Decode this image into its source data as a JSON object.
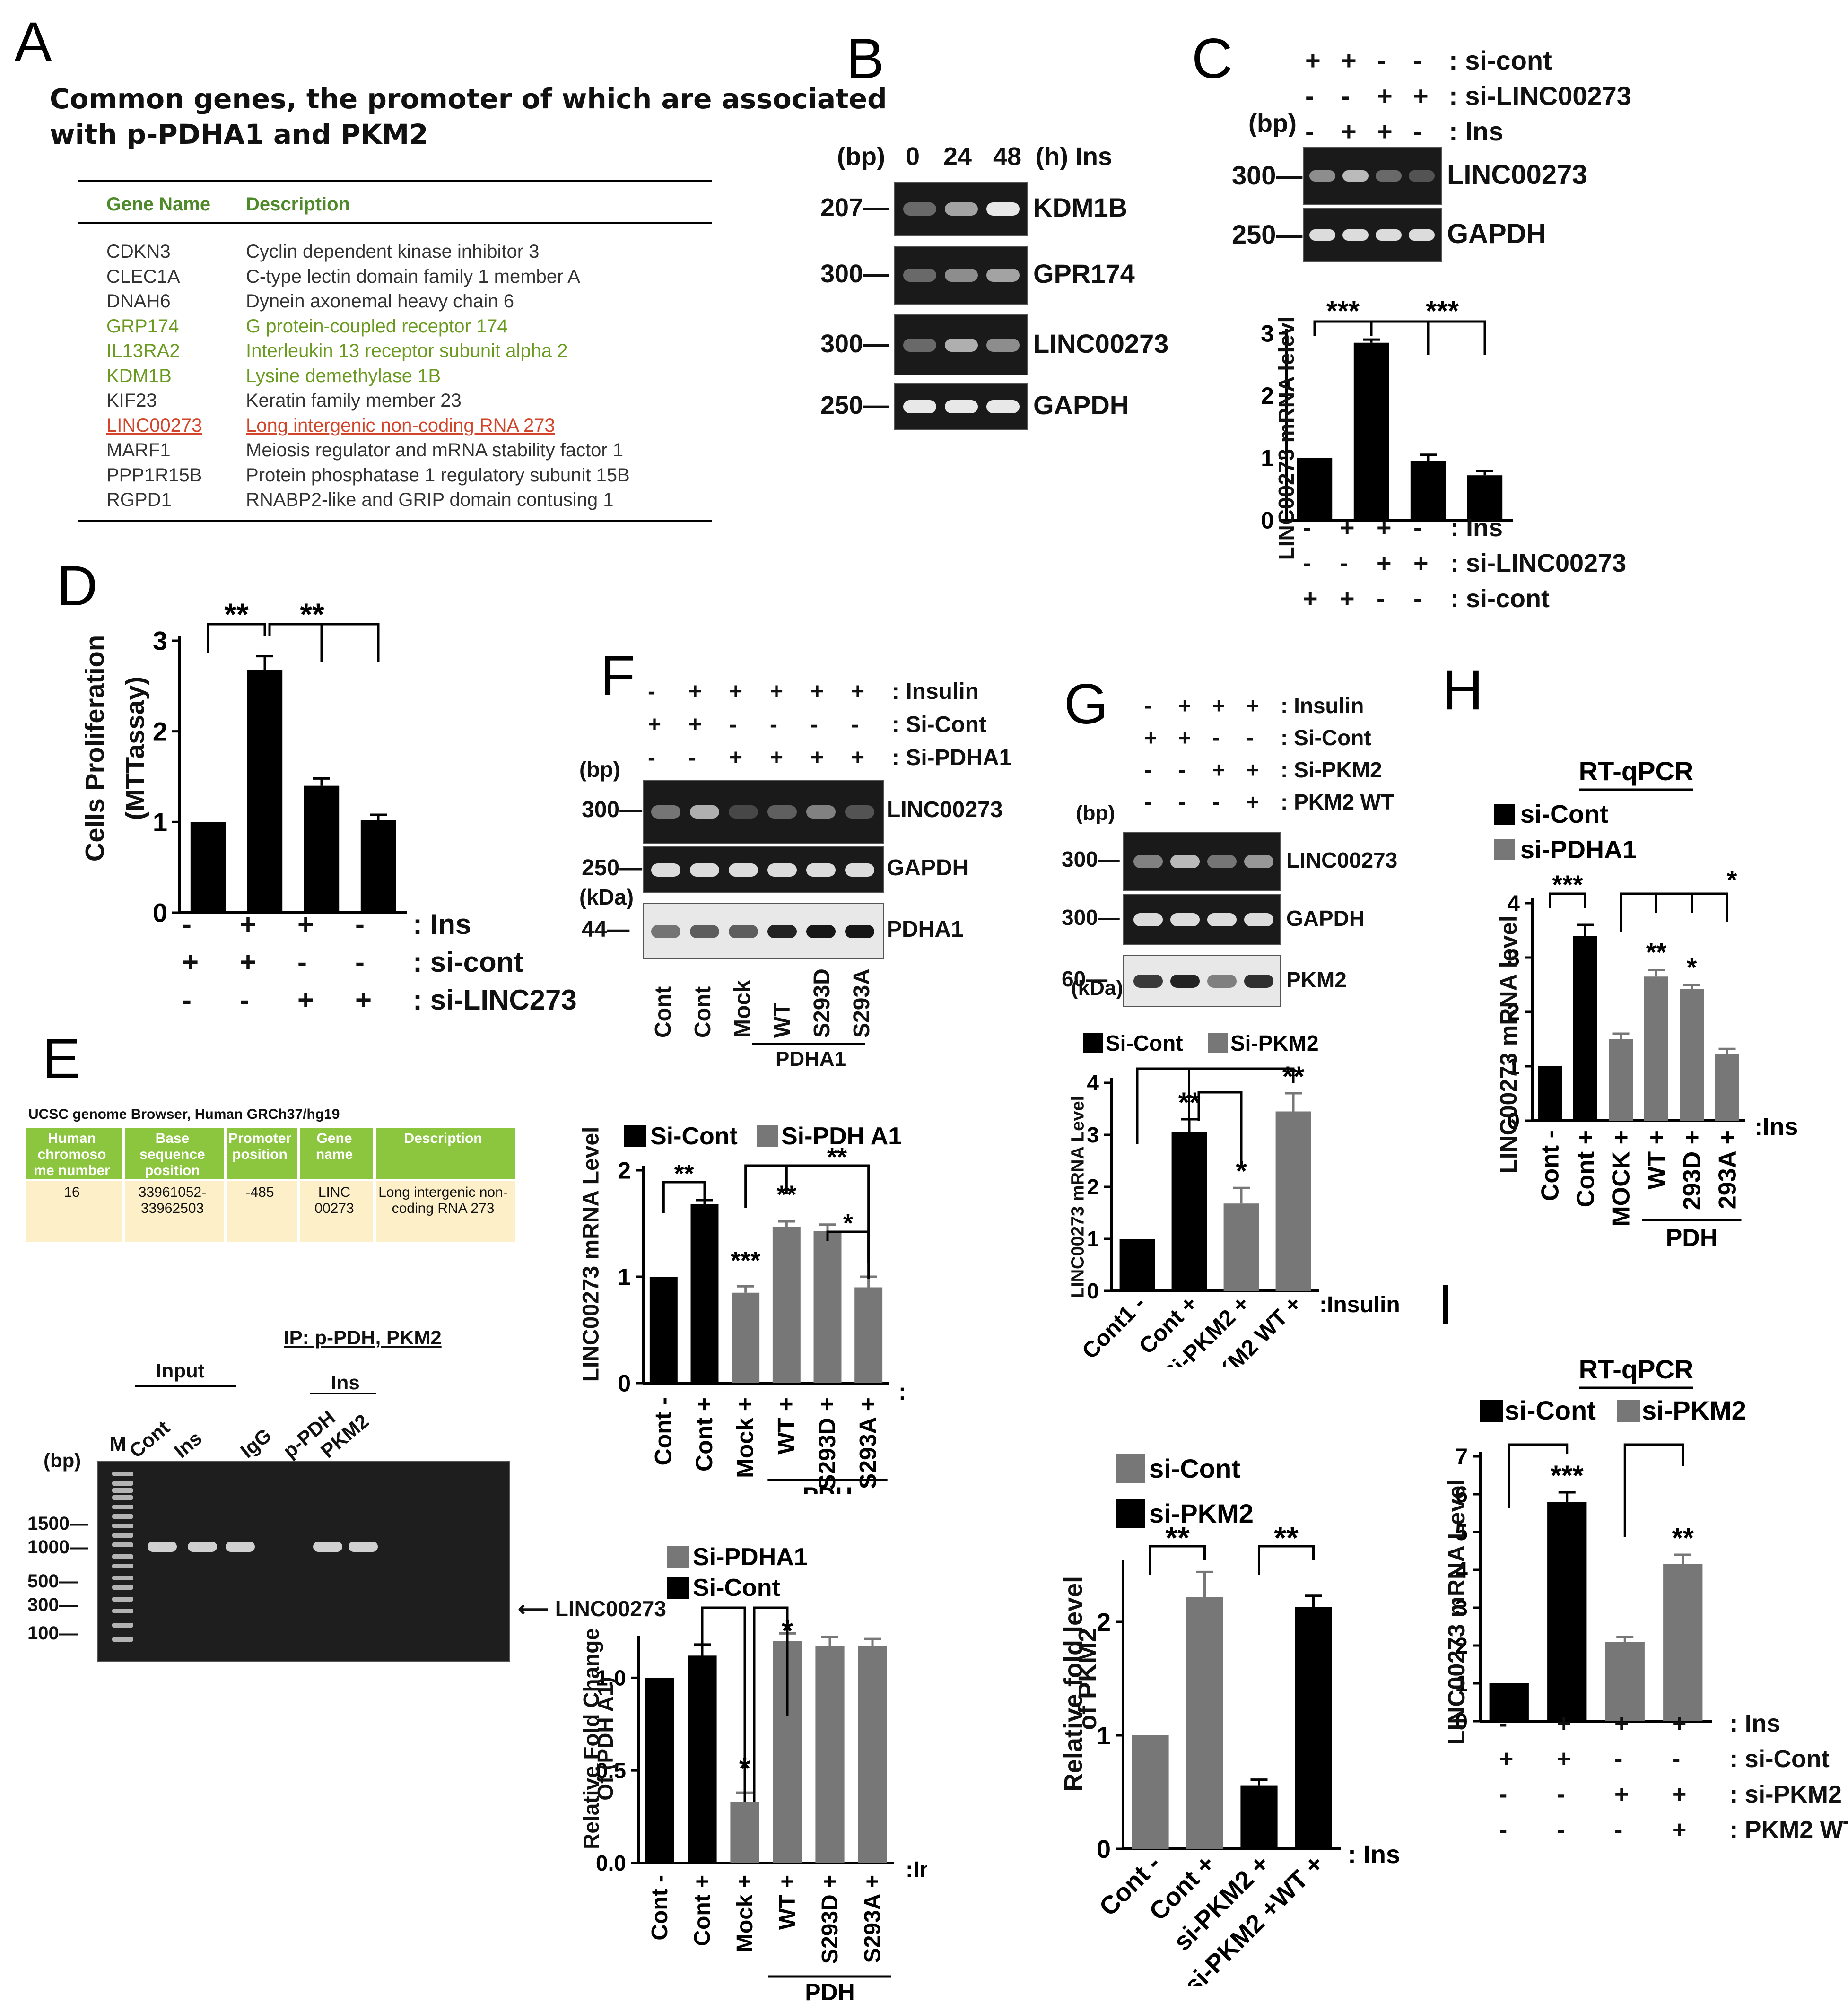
{
  "panel_labels": {
    "A": "A",
    "B": "B",
    "C": "C",
    "D": "D",
    "E": "E",
    "F": "F",
    "G": "G",
    "H": "H",
    "I": "I"
  },
  "panelA": {
    "title_line1": "Common genes, the promoter of which are associated",
    "title_line2": "with p-PDHA1 and PKM2",
    "col_gene": "Gene Name",
    "col_desc": "Description",
    "rows": [
      {
        "gene": "CDKN3",
        "desc": "Cyclin dependent kinase inhibitor 3",
        "style": "normal"
      },
      {
        "gene": "CLEC1A",
        "desc": "C-type lectin domain family 1 member A",
        "style": "normal"
      },
      {
        "gene": "DNAH6",
        "desc": "Dynein axonemal heavy chain 6",
        "style": "normal"
      },
      {
        "gene": "GRP174",
        "desc": "G protein-coupled receptor 174",
        "style": "green"
      },
      {
        "gene": "IL13RA2",
        "desc": "Interleukin 13 receptor subunit alpha 2",
        "style": "green"
      },
      {
        "gene": "KDM1B",
        "desc": "Lysine demethylase 1B",
        "style": "green"
      },
      {
        "gene": "KIF23",
        "desc": "Keratin family member 23",
        "style": "normal"
      },
      {
        "gene": "LINC00273",
        "desc": "Long intergenic non-coding RNA 273",
        "style": "red"
      },
      {
        "gene": "MARF1",
        "desc": "Meiosis regulator and mRNA stability factor 1",
        "style": "normal"
      },
      {
        "gene": "PPP1R15B",
        "desc": "Protein phosphatase 1 regulatory subunit 15B",
        "style": "normal"
      },
      {
        "gene": "RGPD1",
        "desc": "RNABP2-like and GRIP domain contusing 1",
        "style": "normal"
      }
    ],
    "colors": {
      "green": "#6a9a1f",
      "red": "#d2452a",
      "header": "#4f8a2a"
    }
  },
  "panelB": {
    "header_bp": "(bp)",
    "lanes": [
      "0",
      "24",
      "48"
    ],
    "lane_suffix": "(h) Ins",
    "blots": [
      {
        "bp": "207",
        "name": "KDM1B"
      },
      {
        "bp": "300",
        "name": "GPR174"
      },
      {
        "bp": "300",
        "name": "LINC00273"
      },
      {
        "bp": "250",
        "name": "GAPDH"
      }
    ]
  },
  "panelC": {
    "rows": [
      {
        "signs": [
          "+",
          "+",
          "-",
          "-"
        ],
        "label": ": si-cont"
      },
      {
        "signs": [
          "-",
          "-",
          "+",
          "+"
        ],
        "label": ": si-LINC00273"
      },
      {
        "signs": [
          "-",
          "+",
          "+",
          "-"
        ],
        "label": ": Ins"
      }
    ],
    "bp": "(bp)",
    "blots": [
      {
        "bp": "300",
        "name": "LINC00273"
      },
      {
        "bp": "250",
        "name": "GAPDH"
      }
    ],
    "chart_ylabel": "LINC00273 mRNA lelevl",
    "sig": [
      "***",
      "***"
    ],
    "x_rows": [
      {
        "signs": [
          "-",
          "+",
          "+",
          "-"
        ],
        "label": ": Ins"
      },
      {
        "signs": [
          "-",
          "-",
          "+",
          "+"
        ],
        "label": ": si-LINC00273"
      },
      {
        "signs": [
          "+",
          "+",
          "-",
          "-"
        ],
        "label": ": si-cont"
      }
    ]
  },
  "panelD": {
    "ylabel": "Cells Proliferation",
    "ylabel2": "(MTTassay)",
    "sig": [
      "**",
      "**"
    ],
    "x_rows": [
      {
        "signs": [
          "-",
          "+",
          "+",
          "-"
        ],
        "label": ": Ins"
      },
      {
        "signs": [
          "+",
          "+",
          "-",
          "-"
        ],
        "label": ": si-cont"
      },
      {
        "signs": [
          "-",
          "-",
          "+",
          "+"
        ],
        "label": ": si-LINC273"
      }
    ]
  },
  "panelE": {
    "caption": "UCSC genome Browser, Human GRCh37/hg19",
    "headers": [
      "Human chromoso me number",
      "Base sequence position",
      "Promoter position",
      "Gene name",
      "Description"
    ],
    "values": [
      "16",
      "33961052- 33962503",
      "-485",
      "LINC 00273",
      "Long intergenic non-coding RNA 273"
    ],
    "ip_title": "IP: p-PDH, PKM2",
    "input_label": "Input",
    "ins_label": "Ins",
    "lanes": [
      "M",
      "Cont",
      "Ins",
      "IgG",
      "p-PDH",
      "PKM2"
    ],
    "ladder": [
      "1500",
      "1000",
      "500",
      "300",
      "100"
    ],
    "bp": "(bp)",
    "arrow_label": "LINC00273",
    "colors": {
      "header_bg": "#8cc63f",
      "row_bg": "#fdf0c8"
    }
  },
  "panelF": {
    "rows": [
      {
        "signs": [
          "-",
          "+",
          "+",
          "+",
          "+",
          "+"
        ],
        "label": ": Insulin"
      },
      {
        "signs": [
          "+",
          "+",
          "-",
          "-",
          "-",
          "-"
        ],
        "label": ": Si-Cont"
      },
      {
        "signs": [
          "-",
          "-",
          "+",
          "+",
          "+",
          "+"
        ],
        "label": ": Si-PDHA1"
      }
    ],
    "bp": "(bp)",
    "kda": "(kDa)",
    "blots": [
      {
        "bp": "300",
        "name": "LINC00273"
      },
      {
        "bp": "250",
        "name": "GAPDH"
      },
      {
        "bp": "44",
        "name": "PDHA1"
      }
    ],
    "lanes": [
      "Cont",
      "Cont",
      "Mock",
      "WT",
      "S293D",
      "S293A"
    ],
    "group_label": "PDHA1",
    "chart1": {
      "legend": [
        "Si-Cont",
        "Si-PDH A1"
      ],
      "ylabel": "LINC00273 mRNA Level",
      "xcat": [
        "Cont",
        "Cont",
        "Mock",
        "WT",
        "S293D",
        "S293A"
      ],
      "xsigns": [
        "-",
        "+",
        "+",
        "+",
        "+",
        "+"
      ],
      "xtail": ": Insulin",
      "group": "PDH",
      "sig": [
        "**",
        "**",
        "***",
        "**",
        "*"
      ]
    },
    "chart2": {
      "legend": [
        "Si-PDHA1",
        "Si-Cont"
      ],
      "ylabel1": "Relative Fold Change",
      "ylabel2": "Of (PDH A1)",
      "xcat": [
        "Cont",
        "Cont",
        "Mock",
        "WT",
        "S293D",
        "S293A"
      ],
      "xsigns": [
        "-",
        "+",
        "+",
        "+",
        "+",
        "+"
      ],
      "xtail": ":Ins",
      "group": "PDH",
      "sig": [
        "*",
        "*"
      ]
    }
  },
  "panelG": {
    "rows": [
      {
        "signs": [
          "-",
          "+",
          "+",
          "+"
        ],
        "label": ": Insulin"
      },
      {
        "signs": [
          "+",
          "+",
          "-",
          "-"
        ],
        "label": ": Si-Cont"
      },
      {
        "signs": [
          "-",
          "-",
          "+",
          "+"
        ],
        "label": ": Si-PKM2"
      },
      {
        "signs": [
          "-",
          "-",
          "-",
          "+"
        ],
        "label": ": PKM2 WT"
      }
    ],
    "bp": "(bp)",
    "kda": "(kDa)",
    "blots": [
      {
        "bp": "300",
        "name": "LINC00273"
      },
      {
        "bp": "300",
        "name": "GAPDH"
      },
      {
        "bp": "60",
        "name": "PKM2"
      }
    ],
    "chart1": {
      "legend": [
        "Si-Cont",
        "Si-PKM2"
      ],
      "ylabel": "LINC00273 mRNA Level",
      "xcat": [
        "Cont1",
        "Cont",
        "Si-PKM2",
        "PKM2 WT"
      ],
      "xsigns": [
        "-",
        "+",
        "+",
        "+"
      ],
      "xtail": ":Insulin",
      "sig": [
        "**",
        "*",
        "**"
      ]
    },
    "chart2": {
      "legend": [
        "si-Cont",
        "si-PKM2"
      ],
      "ylabel1": "Relative fold level",
      "ylabel2": "of PKM2",
      "xcat": [
        "Cont",
        "Cont",
        "si-PKM2",
        "si-PKM2 +WT"
      ],
      "xsigns": [
        "-",
        "+",
        "+",
        "+"
      ],
      "xtail": ": Ins",
      "sig": [
        "**",
        "**"
      ]
    }
  },
  "panelH": {
    "title": "RT-qPCR",
    "legend": [
      "si-Cont",
      "si-PDHA1"
    ],
    "ylabel": "LINC00273 mRNA level",
    "xcat": [
      "Cont",
      "Cont",
      "MOCK",
      "WT",
      "293D",
      "293A"
    ],
    "xsigns": [
      "-",
      "+",
      "+",
      "+",
      "+",
      "+"
    ],
    "xtail": ":Ins",
    "group": "PDH",
    "sig": [
      "***",
      "**",
      "*",
      "*"
    ]
  },
  "panelI": {
    "title": "RT-qPCR",
    "legend": [
      "si-Cont",
      "si-PKM2"
    ],
    "ylabel": "LINC00273 mRNA Level",
    "sig": [
      "***",
      "**"
    ],
    "x_rows": [
      {
        "signs": [
          "-",
          "+",
          "+",
          "+"
        ],
        "label": ": Ins"
      },
      {
        "signs": [
          "+",
          "+",
          "-",
          "-"
        ],
        "label": ": si-Cont"
      },
      {
        "signs": [
          "-",
          "-",
          "+",
          "+"
        ],
        "label": ": si-PKM2"
      },
      {
        "signs": [
          "-",
          "-",
          "-",
          "+"
        ],
        "label": ": PKM2 WT"
      }
    ]
  },
  "chart_data": [
    {
      "panel": "C",
      "type": "bar",
      "categories": [
        "1",
        "2",
        "3",
        "4"
      ],
      "values": [
        1.0,
        2.85,
        0.95,
        0.72
      ],
      "errors": [
        0,
        0.05,
        0.1,
        0.07
      ],
      "ylim": [
        0,
        3
      ],
      "yticks": [
        0,
        1,
        2,
        3
      ],
      "ylabel": "LINC00273 mRNA lelevl",
      "colors": [
        "#000000",
        "#000000",
        "#000000",
        "#000000"
      ]
    },
    {
      "panel": "D",
      "type": "bar",
      "categories": [
        "1",
        "2",
        "3",
        "4"
      ],
      "values": [
        1.0,
        2.68,
        1.4,
        1.02
      ],
      "errors": [
        0,
        0.15,
        0.08,
        0.06
      ],
      "ylim": [
        0,
        3
      ],
      "yticks": [
        0,
        1,
        2,
        3
      ],
      "ylabel": "Cells Proliferation (MTTassay)",
      "colors": [
        "#000000",
        "#000000",
        "#000000",
        "#000000"
      ]
    },
    {
      "panel": "F-middle",
      "type": "bar",
      "categories": [
        "Cont",
        "Cont",
        "Mock",
        "WT",
        "S293D",
        "S293A"
      ],
      "values": [
        1.0,
        1.68,
        0.85,
        1.47,
        1.43,
        0.9
      ],
      "errors": [
        0,
        0.04,
        0.06,
        0.05,
        0.06,
        0.1
      ],
      "ylim": [
        0,
        2
      ],
      "yticks": [
        0,
        1,
        2
      ],
      "ylabel": "LINC00273 mRNA Level",
      "series": [
        {
          "name": "Si-Cont"
        },
        {
          "name": "Si-PDH A1"
        }
      ],
      "colors": [
        "#000000",
        "#000000",
        "#777777",
        "#777777",
        "#777777",
        "#777777"
      ]
    },
    {
      "panel": "F-bottom",
      "type": "bar",
      "categories": [
        "Cont",
        "Cont",
        "Mock",
        "WT",
        "S293D",
        "S293A"
      ],
      "values": [
        1.0,
        1.12,
        0.33,
        1.2,
        1.17,
        1.17
      ],
      "errors": [
        0,
        0.06,
        0.05,
        0.04,
        0.05,
        0.04
      ],
      "ylim": [
        0,
        1.2
      ],
      "yticks": [
        0.0,
        0.5,
        1.0
      ],
      "ylabel": "Relative Fold Change Of (PDH A1)",
      "series": [
        {
          "name": "Si-PDHA1"
        },
        {
          "name": "Si-Cont"
        }
      ],
      "colors": [
        "#000000",
        "#000000",
        "#777777",
        "#777777",
        "#777777",
        "#777777"
      ]
    },
    {
      "panel": "G-middle",
      "type": "bar",
      "categories": [
        "Cont1",
        "Cont",
        "Si-PKM2",
        "PKM2 WT"
      ],
      "values": [
        1.0,
        3.05,
        1.68,
        3.45
      ],
      "errors": [
        0,
        0.25,
        0.3,
        0.35
      ],
      "ylim": [
        0,
        4
      ],
      "yticks": [
        0,
        1,
        2,
        3,
        4
      ],
      "ylabel": "LINC00273 mRNA Level",
      "series": [
        {
          "name": "Si-Cont"
        },
        {
          "name": "Si-PKM2"
        }
      ],
      "colors": [
        "#000000",
        "#000000",
        "#777777",
        "#777777"
      ]
    },
    {
      "panel": "G-bottom",
      "type": "bar",
      "categories": [
        "Cont",
        "Cont",
        "si-PKM2",
        "si-PKM2 +WT"
      ],
      "values": [
        1.0,
        2.22,
        0.56,
        2.13
      ],
      "errors": [
        0,
        0.22,
        0.05,
        0.1
      ],
      "ylim": [
        0,
        2.5
      ],
      "yticks": [
        0,
        1,
        2
      ],
      "ylabel": "Relative fold level of PKM2",
      "series": [
        {
          "name": "si-Cont"
        },
        {
          "name": "si-PKM2"
        }
      ],
      "colors": [
        "#777777",
        "#777777",
        "#000000",
        "#000000"
      ]
    },
    {
      "panel": "H",
      "type": "bar",
      "categories": [
        "Cont",
        "Cont",
        "MOCK",
        "WT",
        "293D",
        "293A"
      ],
      "values": [
        1.0,
        3.4,
        1.5,
        2.65,
        2.42,
        1.22
      ],
      "errors": [
        0,
        0.2,
        0.1,
        0.12,
        0.08,
        0.1
      ],
      "ylim": [
        0,
        4
      ],
      "yticks": [
        0,
        1,
        2,
        3,
        4
      ],
      "ylabel": "LINC00273 mRNA level",
      "series": [
        {
          "name": "si-Cont"
        },
        {
          "name": "si-PDHA1"
        }
      ],
      "colors": [
        "#000000",
        "#000000",
        "#777777",
        "#777777",
        "#777777",
        "#777777"
      ]
    },
    {
      "panel": "I",
      "type": "bar",
      "categories": [
        "1",
        "2",
        "3",
        "4"
      ],
      "values": [
        1.0,
        5.8,
        2.1,
        4.15
      ],
      "errors": [
        0,
        0.25,
        0.12,
        0.25
      ],
      "ylim": [
        0,
        7
      ],
      "yticks": [
        0,
        1,
        2,
        3,
        4,
        5,
        6,
        7
      ],
      "ylabel": "LINC00273 mRNA Level",
      "series": [
        {
          "name": "si-Cont"
        },
        {
          "name": "si-PKM2"
        }
      ],
      "colors": [
        "#000000",
        "#000000",
        "#777777",
        "#777777"
      ]
    }
  ]
}
